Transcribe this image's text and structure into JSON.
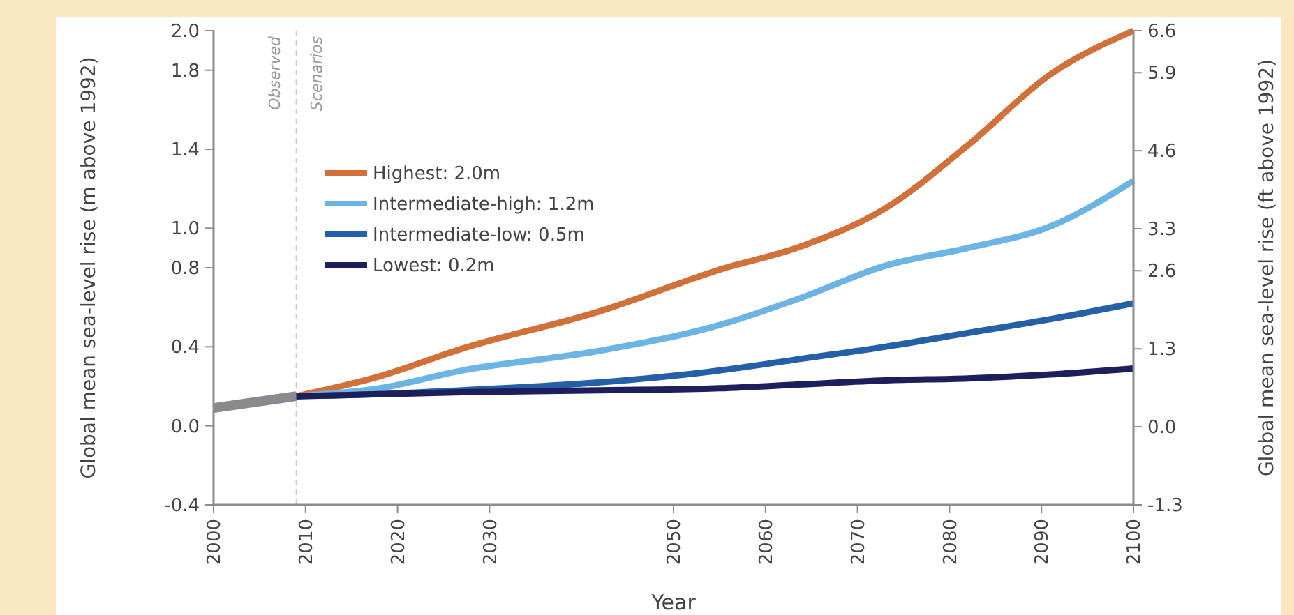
{
  "chart_data": {
    "type": "line",
    "xlabel": "Year",
    "ylabel": "Global mean sea-level rise (m above 1992)",
    "y2label": "Global mean sea-level rise (ft above 1992)",
    "x": [
      2009,
      2018,
      2027,
      2042,
      2055,
      2064,
      2073,
      2082,
      2091,
      2100
    ],
    "series": [
      {
        "color": "#8a8a8e",
        "x": [
          2000,
          2009
        ],
        "values": [
          0.09,
          0.15
        ]
      },
      {
        "name": "Highest: 2.0m",
        "color": "#d2703a",
        "values": [
          0.15,
          0.25,
          0.39,
          0.58,
          0.79,
          0.91,
          1.1,
          1.42,
          1.78,
          2.0
        ]
      },
      {
        "name": "Intermediate-high: 1.2m",
        "color": "#6cb4e4",
        "values": [
          0.15,
          0.19,
          0.28,
          0.38,
          0.51,
          0.65,
          0.81,
          0.9,
          1.01,
          1.24
        ]
      },
      {
        "name": "Intermediate-low: 0.5m",
        "color": "#2360a8",
        "values": [
          0.15,
          0.16,
          0.18,
          0.22,
          0.28,
          0.34,
          0.4,
          0.47,
          0.54,
          0.62
        ]
      },
      {
        "name": "Lowest: 0.2m",
        "color": "#1c1f5c",
        "values": [
          0.15,
          0.16,
          0.17,
          0.18,
          0.19,
          0.21,
          0.23,
          0.24,
          0.26,
          0.29
        ]
      }
    ],
    "xlim": [
      2000,
      2100
    ],
    "xticks": [
      2000,
      2010,
      2020,
      2030,
      2050,
      2060,
      2070,
      2080,
      2090,
      2100
    ],
    "ylim": [
      -0.4,
      2.0
    ],
    "yticks": [
      -0.4,
      {
        "value": 0,
        "label": "0.0"
      },
      0.4,
      0.8,
      {
        "value": 1,
        "label": "1.0"
      },
      1.4,
      1.8,
      {
        "value": 2,
        "label": "2.0"
      }
    ],
    "y2lim": [
      -1.3,
      6.6
    ],
    "y2ticks": [
      -1.3,
      {
        "value": 0,
        "label": "0.0"
      },
      1.3,
      2.6,
      3.3,
      4.6,
      5.9,
      6.6
    ],
    "ref_lines": [
      {
        "axis": "x",
        "value": 2009,
        "color": "#c8c8cc",
        "line_style": "dashed"
      }
    ],
    "annotations": [
      "Observed",
      "Scenarios"
    ],
    "legend": "top left",
    "grid": false,
    "marker": "none",
    "line_style": "solid"
  }
}
